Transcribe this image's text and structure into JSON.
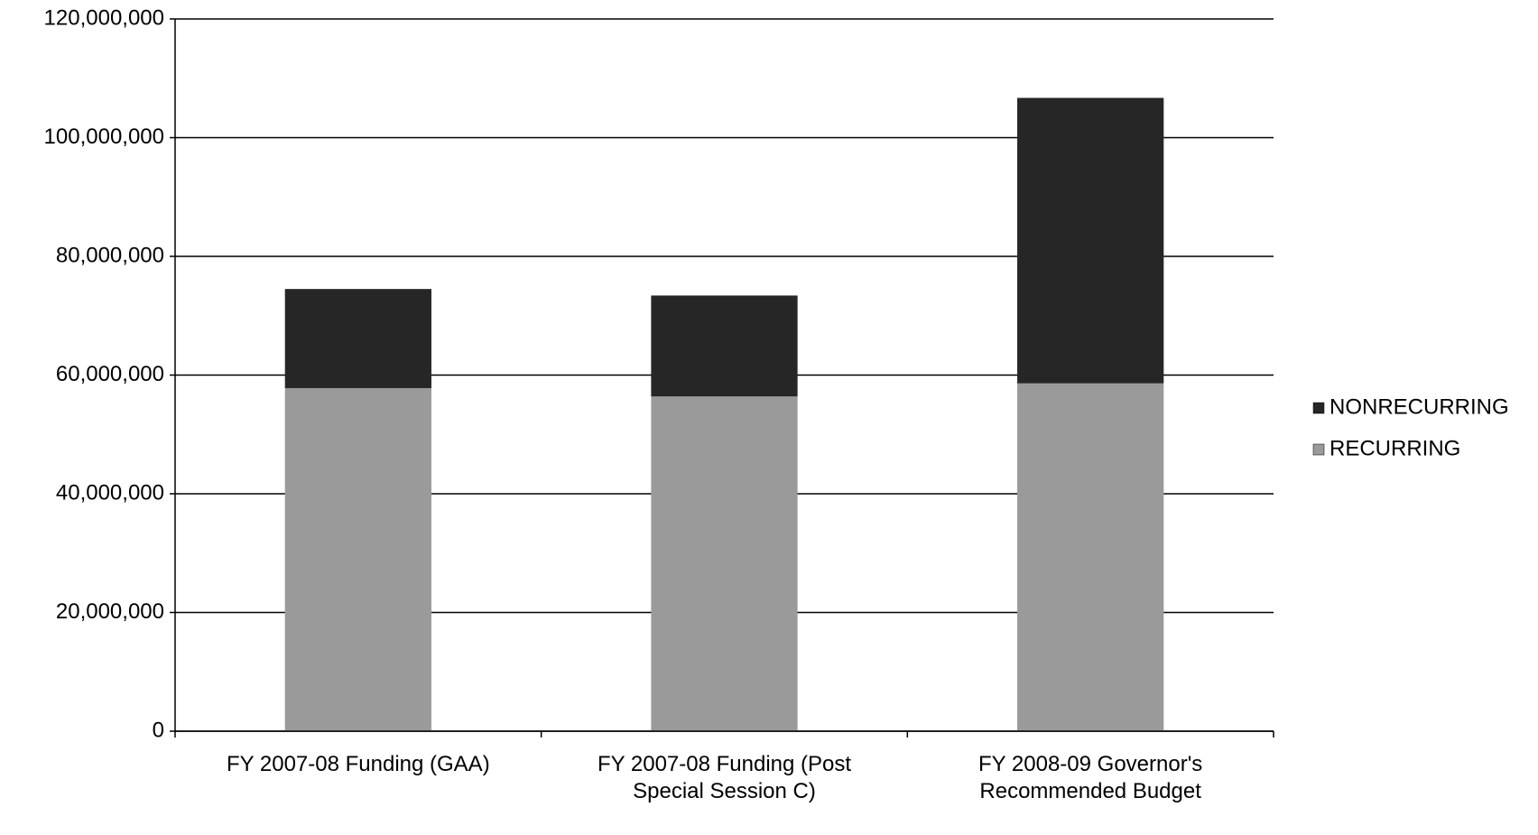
{
  "chart_data": {
    "type": "stacked_bar",
    "categories": [
      "FY 2007-08 Funding (GAA)",
      "FY 2007-08 Funding (Post Special Session C)",
      "FY 2008-09 Governor's Recommended Budget"
    ],
    "series": [
      {
        "name": "RECURRING",
        "color": "#9a9a9a",
        "values": [
          57800000,
          56400000,
          58600000
        ]
      },
      {
        "name": "NONRECURRING",
        "color": "#262626",
        "values": [
          16700000,
          17000000,
          48100000
        ]
      }
    ],
    "ylim": [
      0,
      120000000
    ],
    "yticks": [
      0,
      {
        "value": 20000000,
        "label": "20,000,000"
      },
      {
        "value": 40000000,
        "label": "40,000,000"
      },
      {
        "value": 60000000,
        "label": "60,000,000"
      },
      {
        "value": 80000000,
        "label": "80,000,000"
      },
      {
        "value": 100000000,
        "label": "100,000,000"
      },
      {
        "value": 120000000,
        "label": "120,000,000"
      }
    ],
    "grid": true,
    "legend": "right"
  }
}
